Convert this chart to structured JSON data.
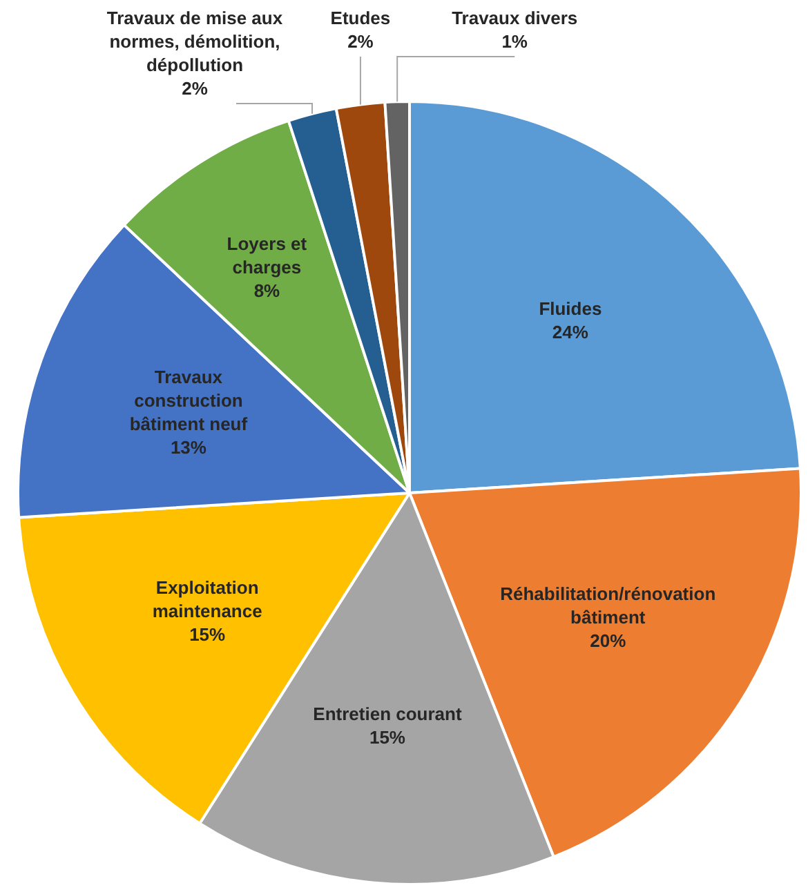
{
  "chart_data": {
    "type": "pie",
    "categories": [
      "Fluides",
      "Réhabilitation/rénovation bâtiment",
      "Entretien courant",
      "Exploitation maintenance",
      "Travaux construction bâtiment neuf",
      "Loyers et charges",
      "Travaux de mise aux normes, démolition, dépollution",
      "Etudes",
      "Travaux divers"
    ],
    "values": [
      24,
      20,
      15,
      15,
      13,
      8,
      2,
      2,
      1
    ],
    "value_labels": [
      "24%",
      "20%",
      "15%",
      "15%",
      "13%",
      "8%",
      "2%",
      "2%",
      "1%"
    ],
    "colors": [
      "#5b9bd5",
      "#ed7d31",
      "#a5a5a5",
      "#ffc000",
      "#4472c4",
      "#70ad47",
      "#255e91",
      "#9e480e",
      "#636363"
    ],
    "legend": false
  }
}
